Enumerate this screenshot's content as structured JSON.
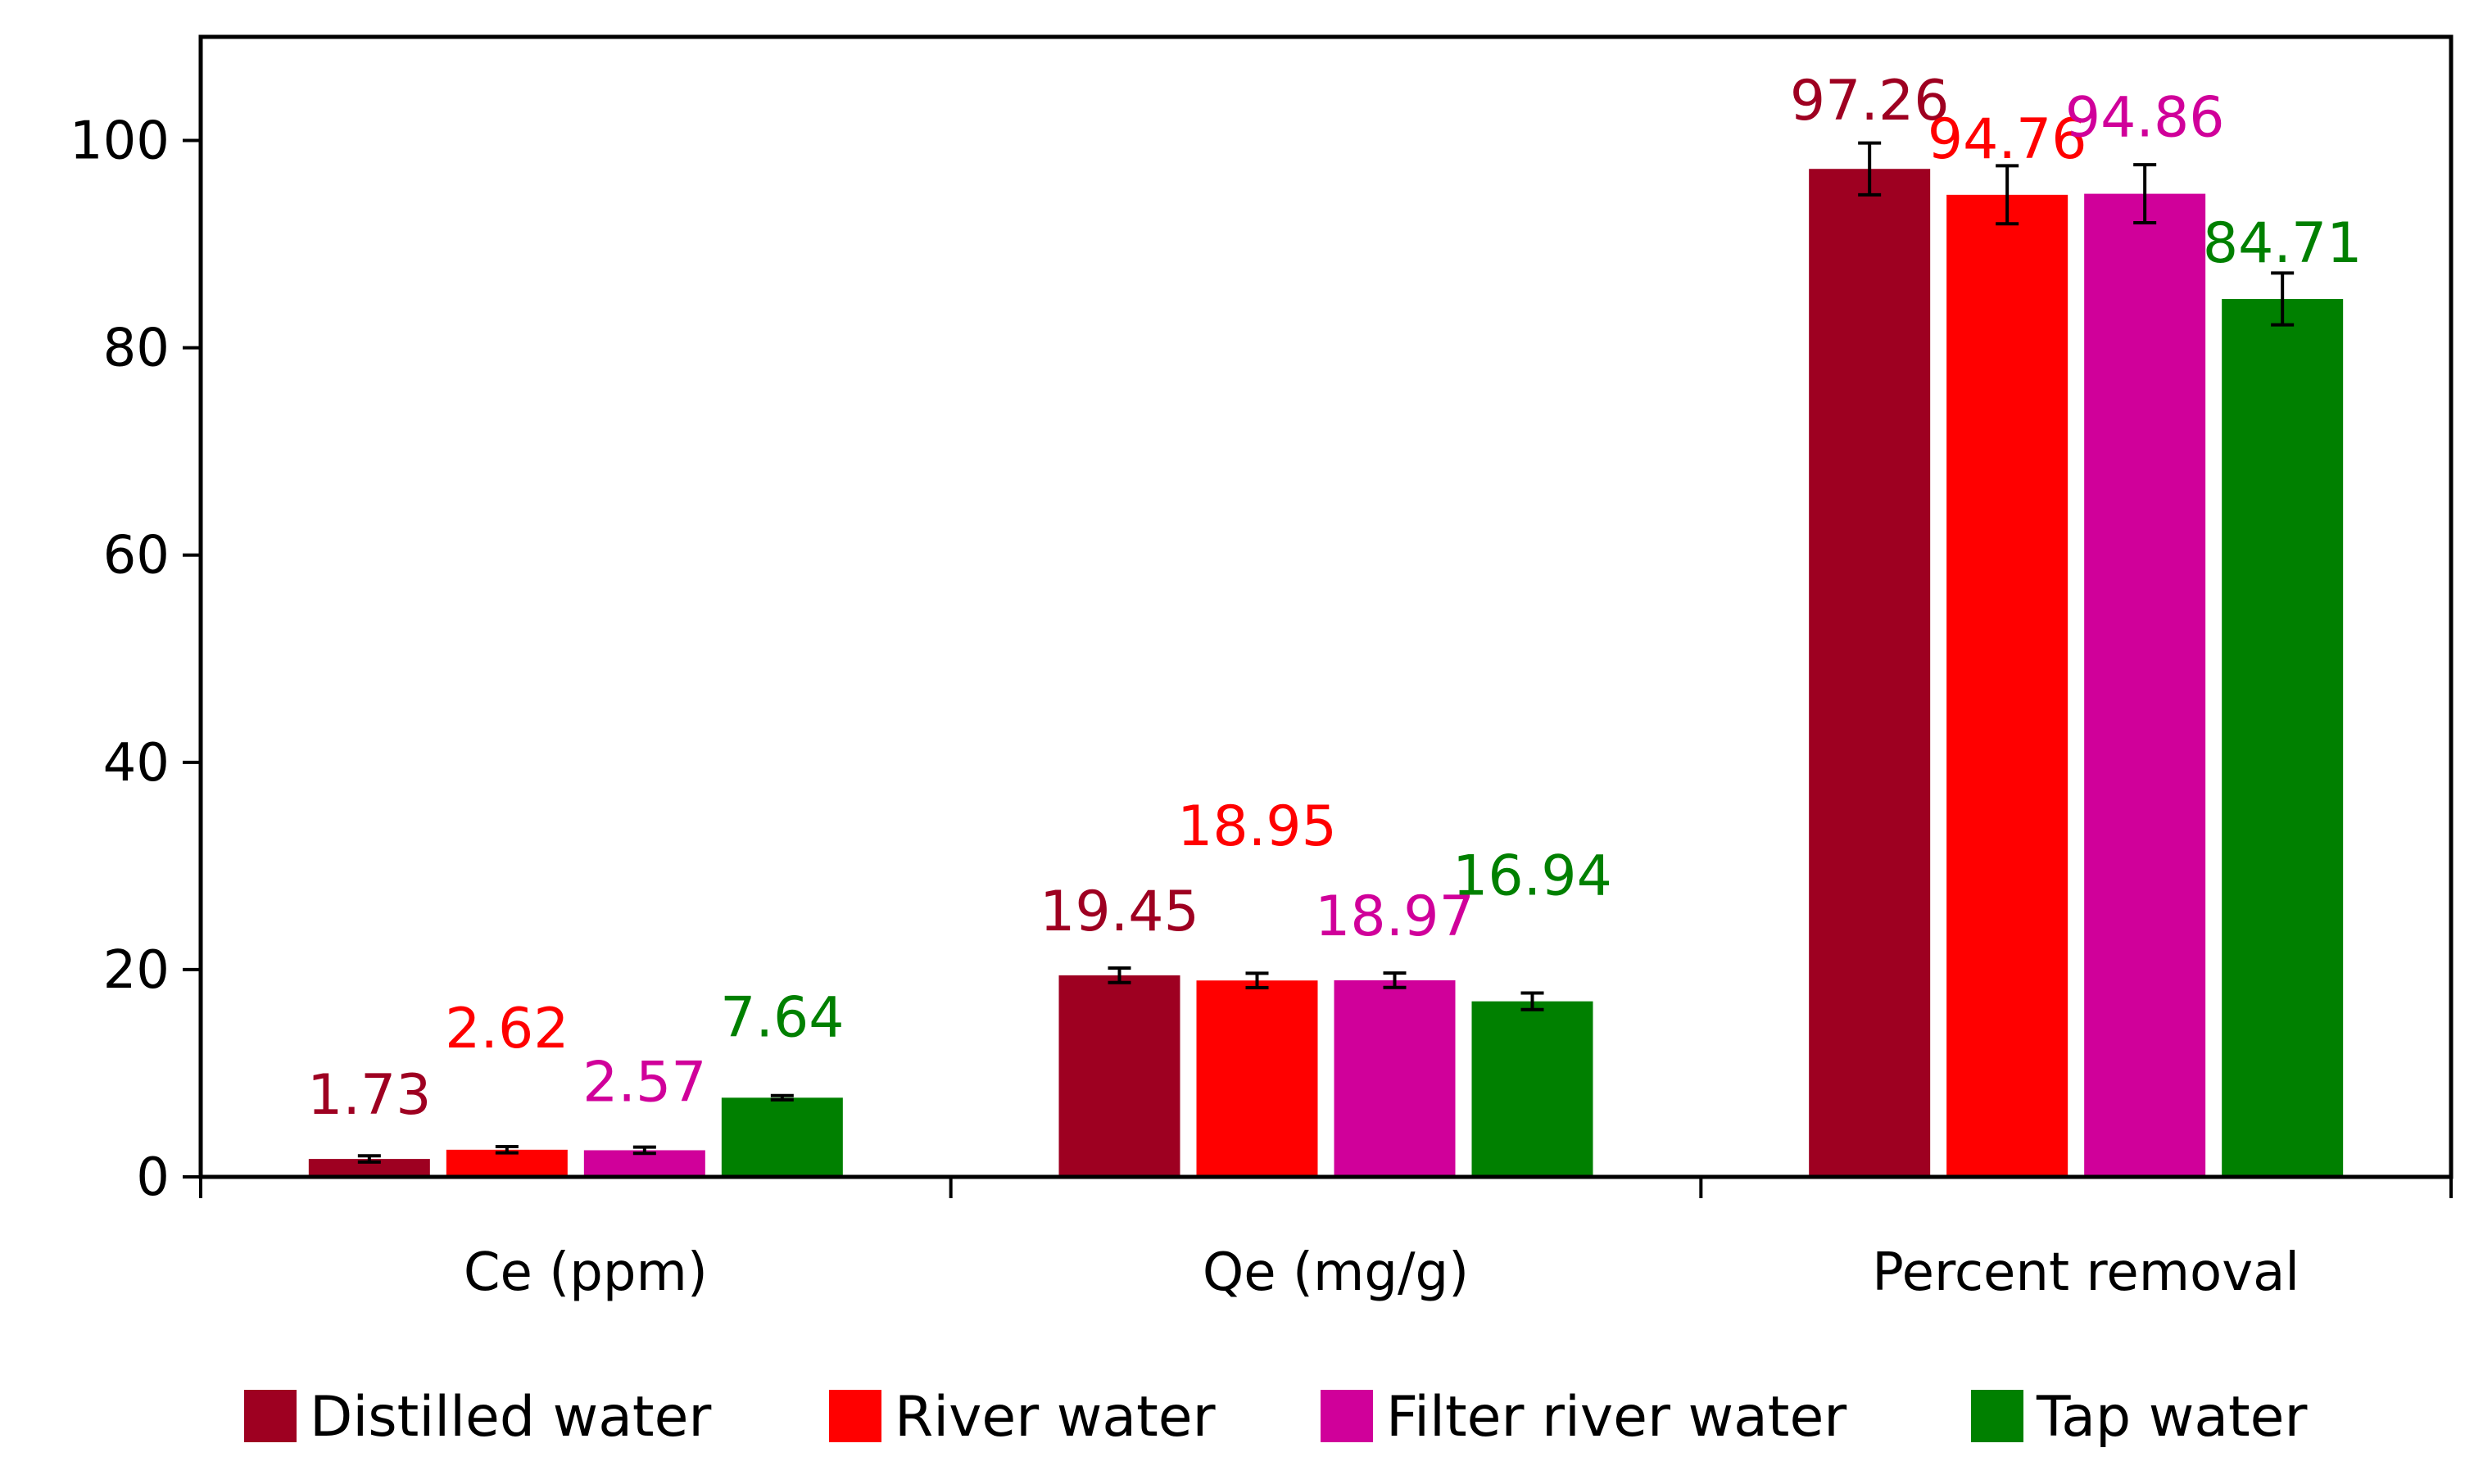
{
  "chart_data": {
    "type": "bar",
    "title": "",
    "xlabel": "",
    "ylabel": "",
    "ylim": [
      0,
      110
    ],
    "yticks": [
      0,
      20,
      40,
      60,
      80,
      100
    ],
    "grid": false,
    "legend_position": "bottom",
    "categories": [
      "Ce (ppm)",
      "Qe (mg/g)",
      "Percent removal"
    ],
    "series": [
      {
        "name": "Distilled water",
        "color": "#9E0021",
        "values": [
          1.73,
          19.45,
          97.26
        ],
        "labels": [
          "1.73",
          "19.45",
          "97.26"
        ],
        "errors": [
          0.3,
          0.7,
          2.5
        ]
      },
      {
        "name": "River water",
        "color": "#FF0000",
        "values": [
          2.62,
          18.95,
          94.76
        ],
        "labels": [
          "2.62",
          "18.95",
          "94.76"
        ],
        "errors": [
          0.3,
          0.7,
          2.8
        ]
      },
      {
        "name": "Filter river water",
        "color": "#D0009A",
        "values": [
          2.57,
          18.97,
          94.86
        ],
        "labels": [
          "2.57",
          "18.97",
          "94.86"
        ],
        "errors": [
          0.3,
          0.7,
          2.8
        ]
      },
      {
        "name": "Tap water",
        "color": "#008000",
        "values": [
          7.64,
          16.94,
          84.71
        ],
        "labels": [
          "7.64",
          "16.94",
          "84.71"
        ],
        "errors": [
          0.2,
          0.8,
          2.5
        ]
      }
    ]
  }
}
